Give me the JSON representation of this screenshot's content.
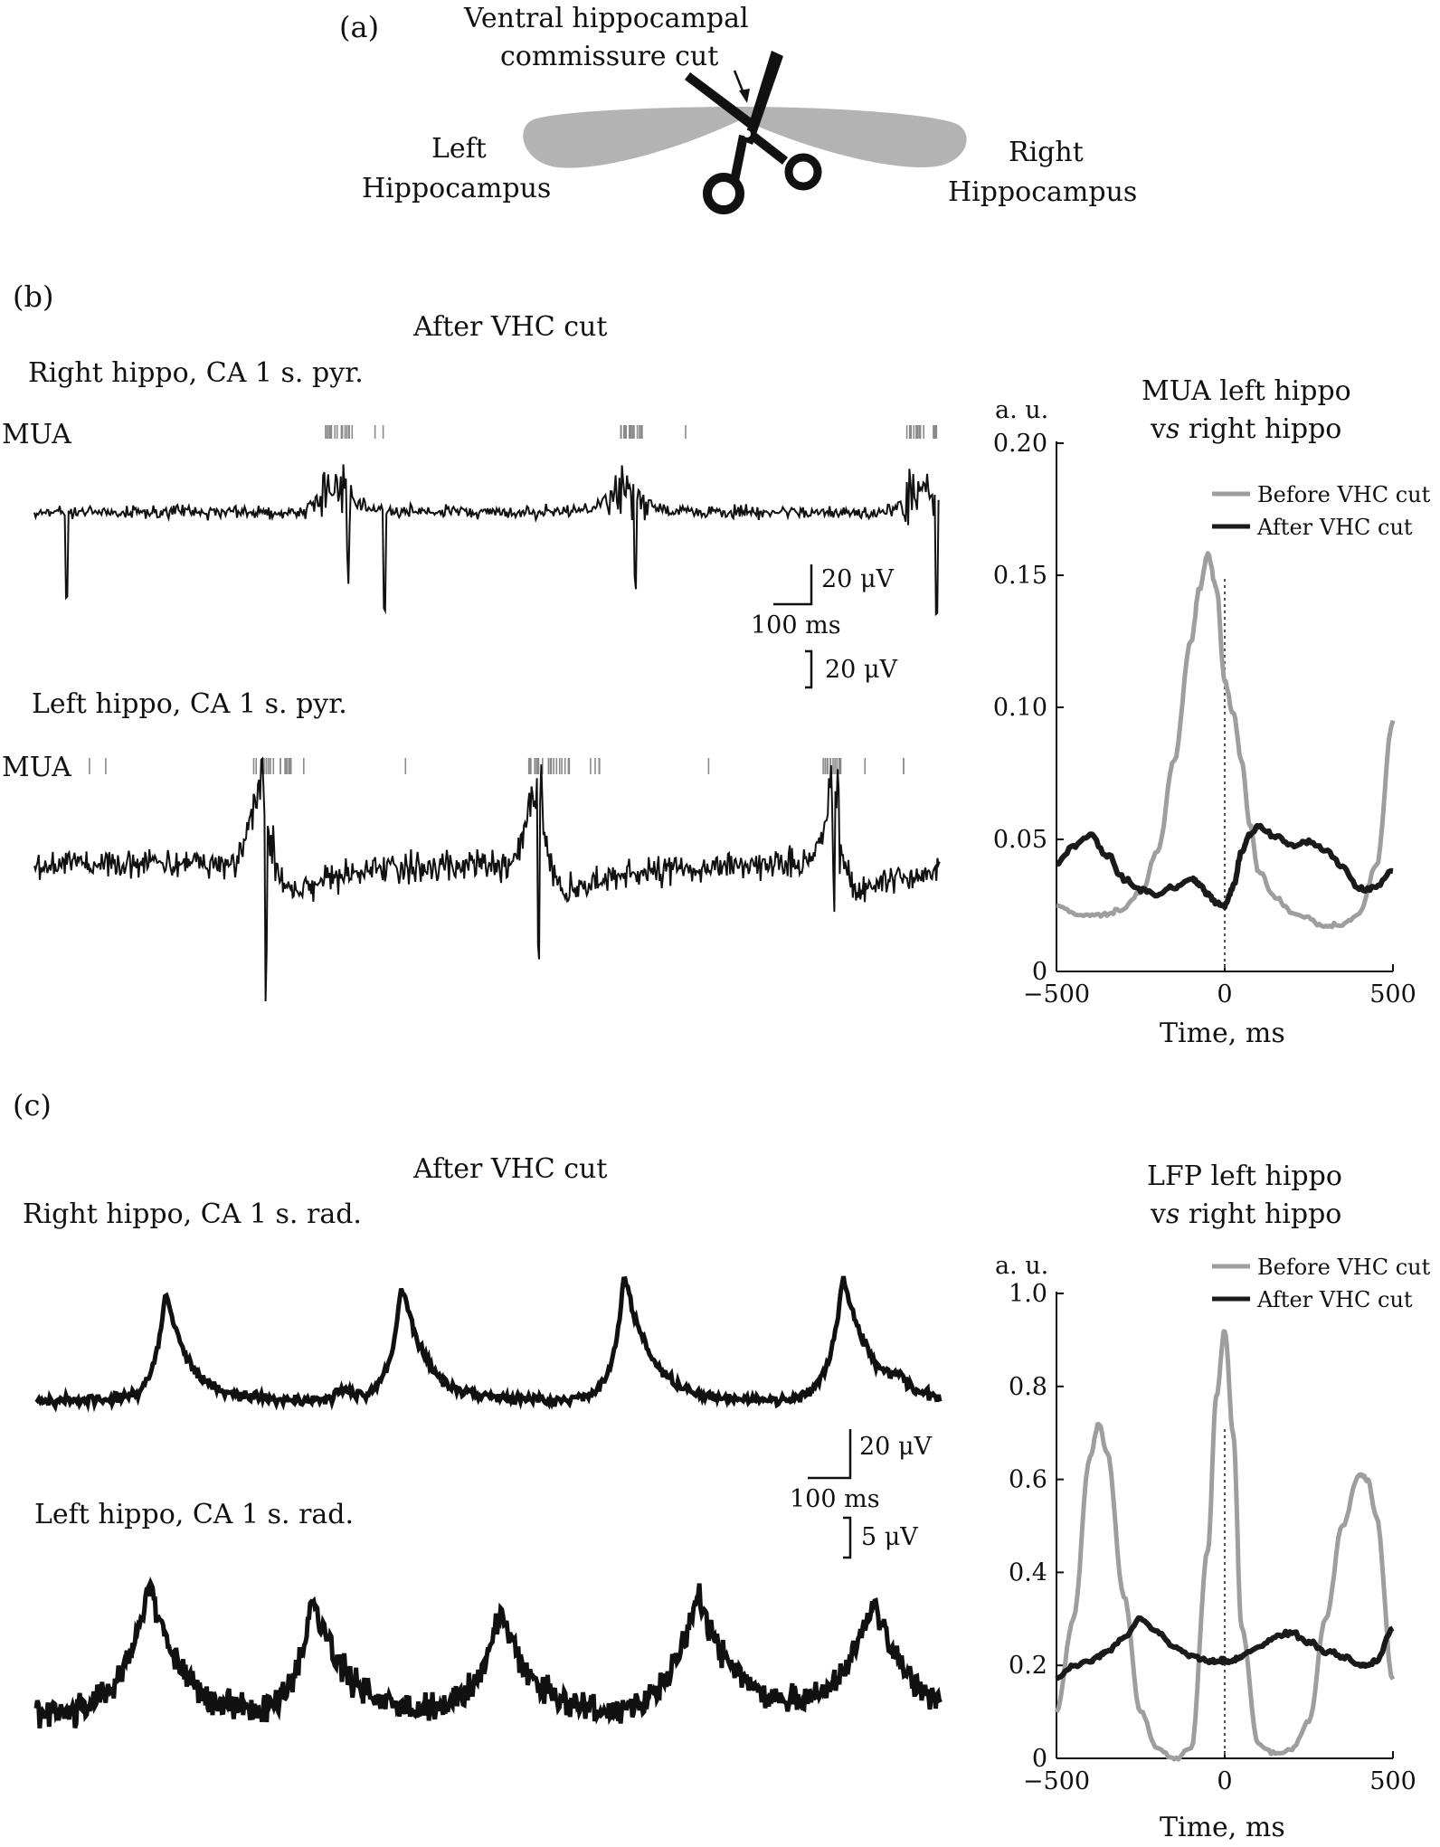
{
  "panel_a": {
    "label": "(a)",
    "cut_label_line1": "Ventral hippocampal",
    "cut_label_line2": "commissure cut",
    "left_line1": "Left",
    "left_line2": "Hippocampus",
    "right_line1": "Right",
    "right_line2": "Hippocampus",
    "hippocampus_color": "#b3b3b3",
    "scissors_color": "#111111"
  },
  "panel_b": {
    "label": "(b)",
    "title": "After VHC cut",
    "trace1_label": "Right hippo, CA 1 s. pyr.",
    "trace2_label": "Left hippo, CA 1 s. pyr.",
    "mua_label": "MUA",
    "scalebar_v1": "20 μV",
    "scalebar_h": "100 ms",
    "scalebar_v2": "20 μV",
    "plot_title_line1": "MUA left hippo",
    "plot_title_line2_pre": "v",
    "plot_title_line2_italic": "s",
    "plot_title_line2_post": " right hippo",
    "y_unit": "a. u.",
    "x_label": "Time, ms"
  },
  "panel_c": {
    "label": "(c)",
    "title": "After VHC cut",
    "trace1_label": "Right hippo, CA 1 s. rad.",
    "trace2_label": "Left hippo, CA 1 s. rad.",
    "scalebar_v1": "20 μV",
    "scalebar_h": "100 ms",
    "scalebar_v2": "5 μV",
    "plot_title_line1": "LFP left hippo",
    "plot_title_line2_pre": "v",
    "plot_title_line2_italic": "s",
    "plot_title_line2_post": " right hippo",
    "y_unit": "a. u.",
    "x_label": "Time, ms"
  },
  "chart_data": [
    {
      "type": "line",
      "title": "MUA left hippo vs right hippo",
      "xlabel": "Time, ms",
      "ylabel": "a. u.",
      "xlim": [
        -500,
        500
      ],
      "ylim": [
        0,
        0.2
      ],
      "xticks": [
        "-500",
        "0",
        "500"
      ],
      "yticks": [
        "0",
        "0.05",
        "0.10",
        "0.15",
        "0.20"
      ],
      "legend_position": "top-right",
      "zero_line": "dotted",
      "x": [
        -500,
        -450,
        -400,
        -350,
        -300,
        -250,
        -200,
        -150,
        -100,
        -75,
        -50,
        -25,
        0,
        25,
        50,
        75,
        100,
        150,
        200,
        250,
        300,
        350,
        400,
        450,
        500
      ],
      "series": [
        {
          "name": "Before VHC cut",
          "color": "#9e9e9e",
          "values": [
            0.025,
            0.022,
            0.021,
            0.022,
            0.024,
            0.03,
            0.045,
            0.08,
            0.125,
            0.145,
            0.158,
            0.145,
            0.11,
            0.098,
            0.08,
            0.055,
            0.038,
            0.028,
            0.022,
            0.02,
            0.017,
            0.018,
            0.022,
            0.04,
            0.095
          ]
        },
        {
          "name": "After VHC cut",
          "color": "#1a1a1a",
          "values": [
            0.041,
            0.047,
            0.052,
            0.044,
            0.035,
            0.031,
            0.029,
            0.032,
            0.035,
            0.033,
            0.029,
            0.026,
            0.025,
            0.032,
            0.045,
            0.052,
            0.055,
            0.051,
            0.048,
            0.049,
            0.046,
            0.04,
            0.031,
            0.032,
            0.038
          ]
        }
      ]
    },
    {
      "type": "line",
      "title": "LFP left hippo vs right hippo",
      "xlabel": "Time, ms",
      "ylabel": "a. u.",
      "xlim": [
        -500,
        500
      ],
      "ylim": [
        0,
        1.0
      ],
      "xticks": [
        "-500",
        "0",
        "500"
      ],
      "yticks": [
        "0",
        "0.2",
        "0.4",
        "0.6",
        "0.8",
        "1.0"
      ],
      "legend_position": "top-right",
      "zero_line": "dotted",
      "x": [
        -500,
        -450,
        -400,
        -375,
        -350,
        -300,
        -250,
        -200,
        -150,
        -100,
        -50,
        -25,
        0,
        25,
        50,
        100,
        150,
        200,
        250,
        300,
        350,
        400,
        425,
        450,
        500
      ],
      "series": [
        {
          "name": "Before VHC cut",
          "color": "#9e9e9e",
          "values": [
            0.1,
            0.3,
            0.65,
            0.72,
            0.66,
            0.35,
            0.1,
            0.02,
            0.0,
            0.02,
            0.45,
            0.78,
            0.92,
            0.7,
            0.28,
            0.03,
            0.01,
            0.02,
            0.08,
            0.3,
            0.5,
            0.61,
            0.6,
            0.52,
            0.17
          ]
        },
        {
          "name": "After VHC cut",
          "color": "#1a1a1a",
          "values": [
            0.17,
            0.2,
            0.21,
            0.22,
            0.23,
            0.26,
            0.3,
            0.27,
            0.24,
            0.22,
            0.21,
            0.21,
            0.21,
            0.21,
            0.22,
            0.24,
            0.26,
            0.27,
            0.25,
            0.23,
            0.22,
            0.2,
            0.2,
            0.21,
            0.28
          ]
        }
      ]
    }
  ]
}
